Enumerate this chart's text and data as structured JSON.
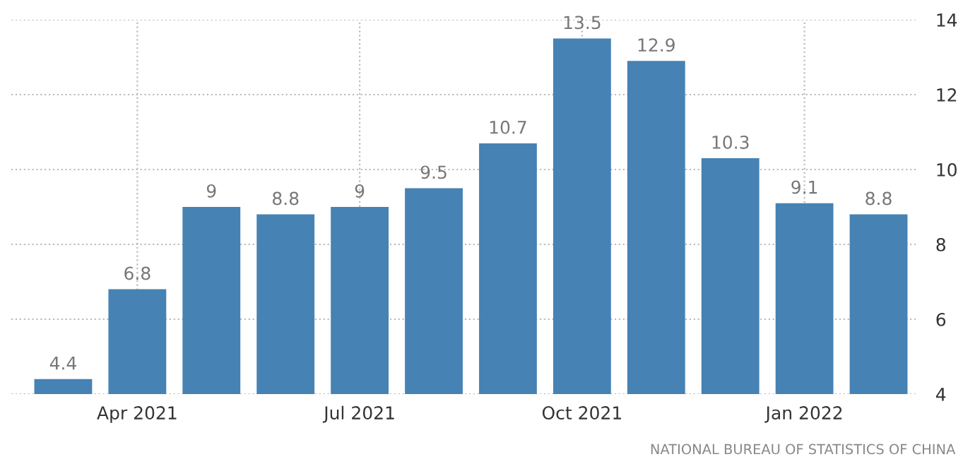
{
  "chart_data": {
    "type": "bar",
    "categories": [
      null,
      "Apr 2021",
      null,
      null,
      "Jul 2021",
      null,
      null,
      "Oct 2021",
      null,
      null,
      "Jan 2022",
      null
    ],
    "values": [
      4.4,
      6.8,
      9,
      8.8,
      9,
      9.5,
      10.7,
      13.5,
      12.9,
      10.3,
      9.1,
      8.8
    ],
    "color": "#4682b4",
    "data_labels": true,
    "ylim": [
      4,
      14
    ],
    "yticks": [
      4,
      6,
      8,
      10,
      12,
      14
    ],
    "grid": true,
    "legend": false,
    "annotations": [
      "NATIONAL BUREAU OF STATISTICS OF CHINA"
    ]
  }
}
